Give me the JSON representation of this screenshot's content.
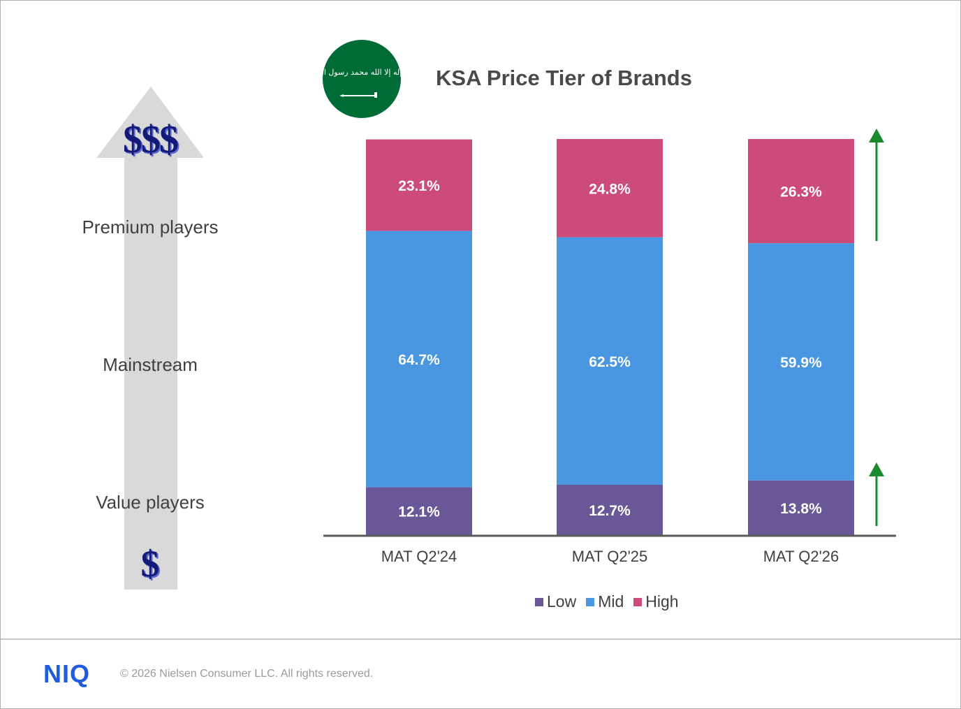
{
  "title": "KSA Price Tier of Brands",
  "left_panel": {
    "top_symbol": "$$$",
    "bottom_symbol": "$",
    "tiers": [
      "Premium players",
      "Mainstream",
      "Value players"
    ]
  },
  "flag": {
    "emblem_text": "لا إله إلا الله محمد رسول الله",
    "name": "saudi-flag-icon"
  },
  "chart_data": {
    "type": "bar",
    "stacked": true,
    "title": "KSA Price Tier of Brands",
    "categories": [
      "MAT Q2'24",
      "MAT Q2'25",
      "MAT Q2'26"
    ],
    "series": [
      {
        "name": "Low",
        "values": [
          12.1,
          12.7,
          13.8
        ],
        "labels": [
          "12.1%",
          "12.7%",
          "13.8%"
        ],
        "color": "#6a5797"
      },
      {
        "name": "Mid",
        "values": [
          64.7,
          62.5,
          59.9
        ],
        "labels": [
          "64.7%",
          "62.5%",
          "59.9%"
        ],
        "color": "#4897e0"
      },
      {
        "name": "High",
        "values": [
          23.1,
          24.8,
          26.3
        ],
        "labels": [
          "23.1%",
          "24.8%",
          "26.3%"
        ],
        "color": "#cc4b7b"
      }
    ],
    "ylim": [
      0,
      100
    ],
    "legend": "bottom",
    "annotations": [
      {
        "icon": "up-arrow-icon",
        "series": "High",
        "color": "#1a8a2e"
      },
      {
        "icon": "up-arrow-icon",
        "series": "Low",
        "color": "#1a8a2e"
      }
    ]
  },
  "legend": {
    "items": [
      "Low",
      "Mid",
      "High"
    ]
  },
  "footer": {
    "logo": "NIQ",
    "copyright": "© 2026 Nielsen Consumer LLC. All rights reserved."
  },
  "colors": {
    "arrow": "#d9d9d9",
    "axis": "#595959",
    "growth_arrow": "#1a8a2e",
    "flag_green": "#006c35"
  }
}
